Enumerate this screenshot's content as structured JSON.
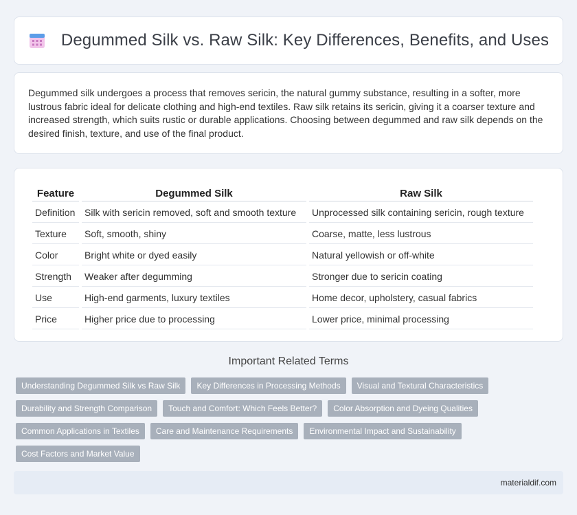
{
  "header": {
    "title": "Degummed Silk vs. Raw Silk: Key Differences, Benefits, and Uses",
    "icon": "calendar-icon"
  },
  "intro": {
    "text": "Degummed silk undergoes a process that removes sericin, the natural gummy substance, resulting in a softer, more lustrous fabric ideal for delicate clothing and high-end textiles. Raw silk retains its sericin, giving it a coarser texture and increased strength, which suits rustic or durable applications. Choosing between degummed and raw silk depends on the desired finish, texture, and use of the final product."
  },
  "table": {
    "headers": [
      "Feature",
      "Degummed Silk",
      "Raw Silk"
    ],
    "rows": [
      [
        "Definition",
        "Silk with sericin removed, soft and smooth texture",
        "Unprocessed silk containing sericin, rough texture"
      ],
      [
        "Texture",
        "Soft, smooth, shiny",
        "Coarse, matte, less lustrous"
      ],
      [
        "Color",
        "Bright white or dyed easily",
        "Natural yellowish or off-white"
      ],
      [
        "Strength",
        "Weaker after degumming",
        "Stronger due to sericin coating"
      ],
      [
        "Use",
        "High-end garments, luxury textiles",
        "Home decor, upholstery, casual fabrics"
      ],
      [
        "Price",
        "Higher price due to processing",
        "Lower price, minimal processing"
      ]
    ]
  },
  "related": {
    "title": "Important Related Terms",
    "tags": [
      "Understanding Degummed Silk vs Raw Silk",
      "Key Differences in Processing Methods",
      "Visual and Textural Characteristics",
      "Durability and Strength Comparison",
      "Touch and Comfort: Which Feels Better?",
      "Color Absorption and Dyeing Qualities",
      "Common Applications in Textiles",
      "Care and Maintenance Requirements",
      "Environmental Impact and Sustainability",
      "Cost Factors and Market Value"
    ]
  },
  "footer": {
    "site": "materialdif.com"
  },
  "colors": {
    "background": "#f0f3f8",
    "tag": "#a8b0bb",
    "icon_top": "#6aa6ea",
    "icon_body": "#e8a0d8"
  }
}
